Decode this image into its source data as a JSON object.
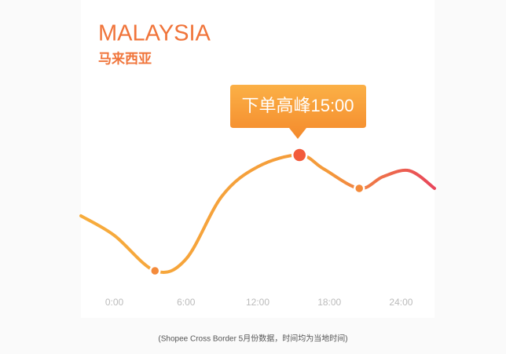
{
  "chart_data": {
    "type": "line",
    "title": "MALAYSIA",
    "subtitle": "马来西亚",
    "annotation": "下单高峰15:00",
    "caption": "(Shopee Cross Border 5月份数据，时间均为当地时间)",
    "x": [
      -2.8,
      0,
      3.4,
      6,
      9,
      12,
      15.5,
      17.5,
      20.5,
      22.5,
      24.7,
      26.8
    ],
    "values": [
      46,
      36,
      18,
      24,
      56,
      71,
      77,
      70,
      60,
      66,
      69,
      60
    ],
    "xlim": [
      -2.8,
      26.8
    ],
    "ylim": [
      0,
      100
    ],
    "xticks": [
      {
        "value": 0,
        "label": "0:00"
      },
      {
        "value": 6,
        "label": "6:00"
      },
      {
        "value": 12,
        "label": "12:00"
      },
      {
        "value": 18,
        "label": "18:00"
      },
      {
        "value": 24,
        "label": "24:00"
      }
    ],
    "marked_points": [
      2,
      6,
      8
    ],
    "peak_point": 6,
    "colors": [
      "#f7ac3c",
      "#f49a3a",
      "#e8455a"
    ]
  }
}
